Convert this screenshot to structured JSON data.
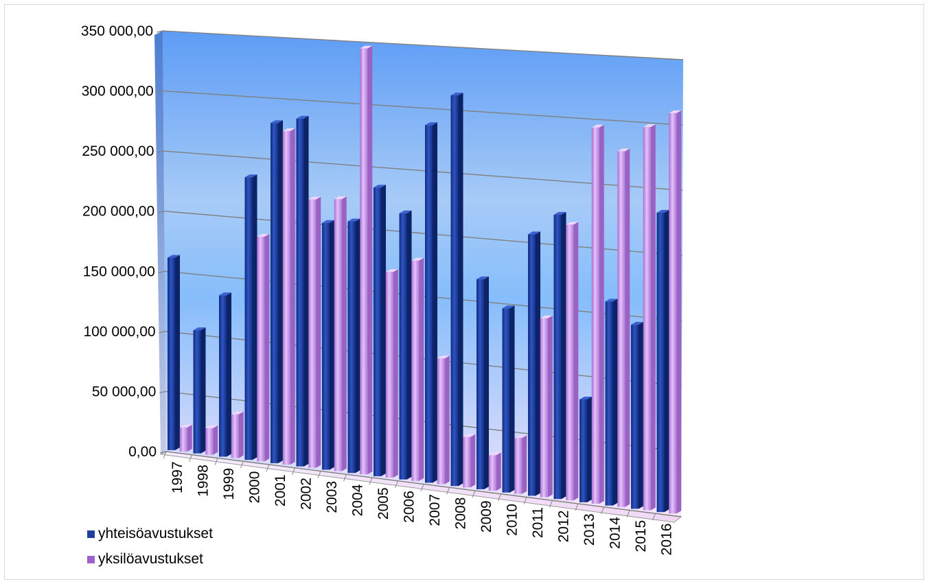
{
  "chart_data": {
    "type": "bar",
    "title": "",
    "xlabel": "",
    "ylabel": "",
    "categories": [
      "1997",
      "1998",
      "1999",
      "2000",
      "2001",
      "2002",
      "2003",
      "2004",
      "2005",
      "2006",
      "2007",
      "2008",
      "2009",
      "2010",
      "2011",
      "2012",
      "2013",
      "2014",
      "2015",
      "2016"
    ],
    "series": [
      {
        "name": "yhteisöavustukset",
        "color": "#1f3e9e",
        "values": [
          160000,
          102000,
          133000,
          232000,
          278000,
          283000,
          200000,
          203000,
          232000,
          213000,
          285000,
          310000,
          166000,
          145000,
          205000,
          222000,
          80000,
          158000,
          142000,
          230000
        ]
      },
      {
        "name": "yksilöavustukset",
        "color": "#c58ee6",
        "values": [
          20000,
          22000,
          36000,
          184000,
          272000,
          218000,
          220000,
          343000,
          165000,
          176000,
          100000,
          40000,
          28000,
          44000,
          140000,
          215000,
          292000,
          275000,
          295000,
          307000
        ]
      }
    ],
    "ylim": [
      0,
      350000
    ],
    "yticks": [
      "0,00",
      "50 000,00",
      "100 000,00",
      "150 000,00",
      "200 000,00",
      "250 000,00",
      "300 000,00",
      "350 000,00"
    ],
    "ytick_values": [
      0,
      50000,
      100000,
      150000,
      200000,
      250000,
      300000,
      350000
    ],
    "grid": true,
    "legend_position": "bottom-left",
    "view": "3d-perspective"
  }
}
